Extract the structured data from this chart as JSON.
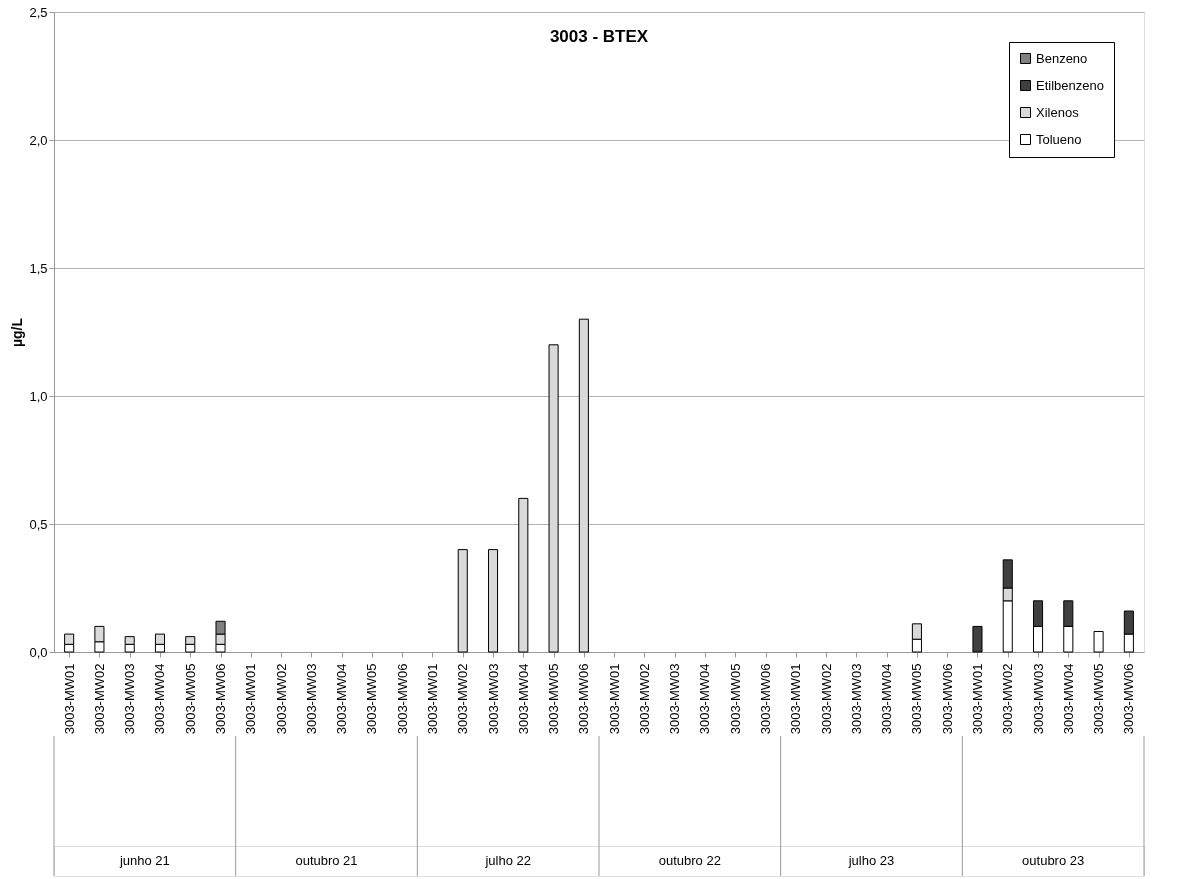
{
  "chart_data": {
    "type": "bar",
    "title": "3003 - BTEX",
    "ylabel": "µg/L",
    "stacked": true,
    "categories": [
      "3003-MW01",
      "3003-MW02",
      "3003-MW03",
      "3003-MW04",
      "3003-MW05",
      "3003-MW06",
      "3003-MW01",
      "3003-MW02",
      "3003-MW03",
      "3003-MW04",
      "3003-MW05",
      "3003-MW06",
      "3003-MW01",
      "3003-MW02",
      "3003-MW03",
      "3003-MW04",
      "3003-MW05",
      "3003-MW06",
      "3003-MW01",
      "3003-MW02",
      "3003-MW03",
      "3003-MW04",
      "3003-MW05",
      "3003-MW06",
      "3003-MW01",
      "3003-MW02",
      "3003-MW03",
      "3003-MW04",
      "3003-MW05",
      "3003-MW06",
      "3003-MW01",
      "3003-MW02",
      "3003-MW03",
      "3003-MW04",
      "3003-MW05",
      "3003-MW06"
    ],
    "series": [
      {
        "name": "Tolueno",
        "color": "#ffffff",
        "values": [
          0.03,
          0.04,
          0.03,
          0.03,
          0.03,
          0.03,
          null,
          null,
          null,
          null,
          null,
          null,
          null,
          null,
          null,
          null,
          null,
          null,
          null,
          null,
          null,
          null,
          null,
          null,
          null,
          null,
          null,
          null,
          0.05,
          null,
          null,
          0.2,
          0.1,
          0.1,
          0.08,
          0.07
        ]
      },
      {
        "name": "Xilenos",
        "color": "#d9d9d9",
        "values": [
          0.04,
          0.06,
          0.03,
          0.04,
          0.03,
          0.04,
          null,
          null,
          null,
          null,
          null,
          null,
          null,
          0.4,
          0.4,
          0.6,
          1.2,
          1.3,
          null,
          null,
          null,
          null,
          null,
          null,
          null,
          null,
          null,
          null,
          0.06,
          null,
          null,
          0.05,
          null,
          null,
          null,
          null
        ]
      },
      {
        "name": "Etilbenzeno",
        "color": "#404040",
        "values": [
          null,
          null,
          null,
          null,
          null,
          null,
          null,
          null,
          null,
          null,
          null,
          null,
          null,
          null,
          null,
          null,
          null,
          null,
          null,
          null,
          null,
          null,
          null,
          null,
          null,
          null,
          null,
          null,
          null,
          null,
          0.1,
          0.11,
          0.1,
          0.1,
          null,
          0.09
        ]
      },
      {
        "name": "Benzeno",
        "color": "#808080",
        "values": [
          null,
          null,
          null,
          null,
          null,
          0.05,
          null,
          null,
          null,
          null,
          null,
          null,
          null,
          null,
          null,
          null,
          null,
          null,
          null,
          null,
          null,
          null,
          null,
          null,
          null,
          null,
          null,
          null,
          null,
          null,
          null,
          null,
          null,
          null,
          null,
          null
        ]
      }
    ],
    "ylim": [
      0,
      2.5
    ],
    "yticks": [
      {
        "value": 0,
        "label": "0,0"
      },
      {
        "value": 0.5,
        "label": "0,5"
      },
      {
        "value": 1,
        "label": "1,0"
      },
      {
        "value": 1.5,
        "label": "1,5"
      },
      {
        "value": 2,
        "label": "2,0"
      },
      {
        "value": 2.5,
        "label": "2,5"
      }
    ],
    "grid": "y",
    "legend": "top right",
    "annotations": [
      "junho 21",
      "outubro 21",
      "julho 22",
      "outubro 22",
      "julho 23",
      "outubro 23"
    ]
  }
}
